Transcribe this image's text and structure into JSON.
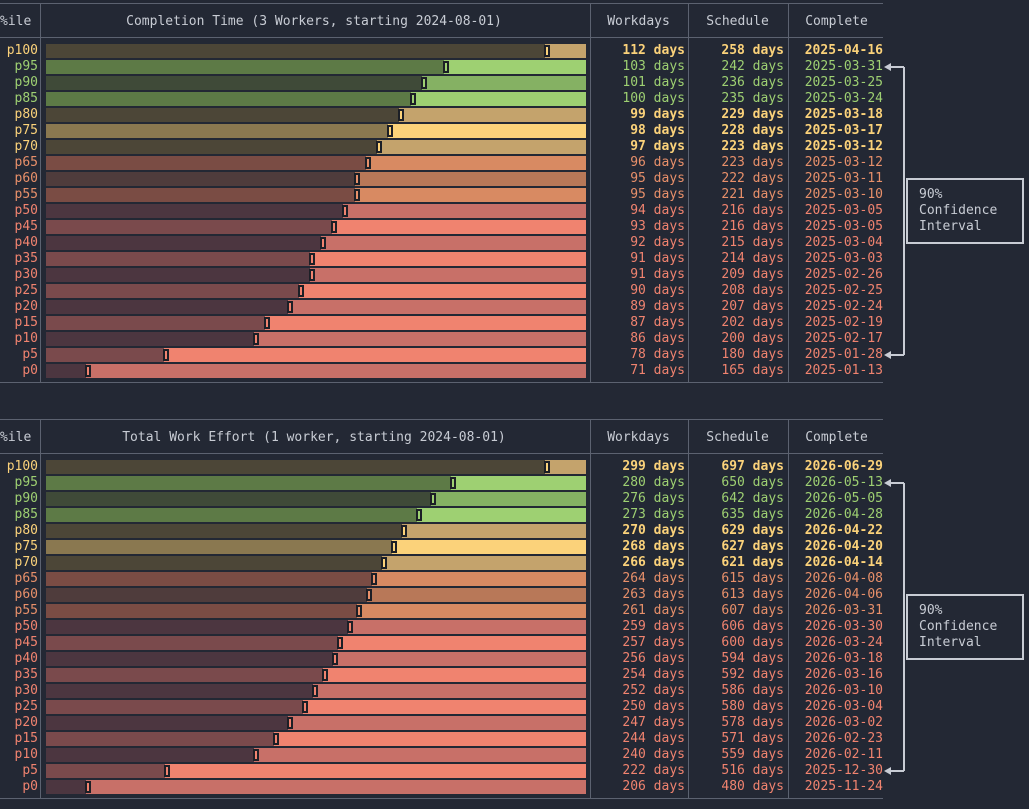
{
  "colors": {
    "background": "#232834",
    "green": "#9ed072",
    "yellow": "#fbd27a",
    "orange": "#e8906a",
    "red": "#f0836f",
    "text": "#c8ccd4"
  },
  "chart_data": [
    {
      "type": "bar",
      "title": "Completion Time (3 Workers, starting 2024-08-01)",
      "columns": [
        "%ile",
        "Workdays",
        "Schedule",
        "Complete"
      ],
      "categories": [
        "p100",
        "p95",
        "p90",
        "p85",
        "p80",
        "p75",
        "p70",
        "p65",
        "p60",
        "p55",
        "p50",
        "p45",
        "p40",
        "p35",
        "p30",
        "p25",
        "p20",
        "p15",
        "p10",
        "p5",
        "p0"
      ],
      "series": [
        {
          "name": "Workdays",
          "values": [
            112,
            103,
            101,
            100,
            99,
            98,
            97,
            96,
            95,
            95,
            94,
            93,
            92,
            91,
            91,
            90,
            89,
            87,
            86,
            78,
            71
          ]
        }
      ],
      "workdays_labels": [
        "112 days",
        "103 days",
        "101 days",
        "100 days",
        "99 days",
        "98 days",
        "97 days",
        "96 days",
        "95 days",
        "95 days",
        "94 days",
        "93 days",
        "92 days",
        "91 days",
        "91 days",
        "90 days",
        "89 days",
        "87 days",
        "86 days",
        "78 days",
        "71 days"
      ],
      "schedule_labels": [
        "258 days",
        "242 days",
        "236 days",
        "235 days",
        "229 days",
        "228 days",
        "223 days",
        "223 days",
        "222 days",
        "221 days",
        "216 days",
        "216 days",
        "215 days",
        "214 days",
        "209 days",
        "208 days",
        "207 days",
        "202 days",
        "200 days",
        "180 days",
        "165 days"
      ],
      "complete_labels": [
        "2025-04-16",
        "2025-03-31",
        "2025-03-25",
        "2025-03-24",
        "2025-03-18",
        "2025-03-17",
        "2025-03-12",
        "2025-03-12",
        "2025-03-11",
        "2025-03-10",
        "2025-03-05",
        "2025-03-05",
        "2025-03-04",
        "2025-03-03",
        "2025-02-26",
        "2025-02-25",
        "2025-02-24",
        "2025-02-19",
        "2025-02-17",
        "2025-01-28",
        "2025-01-13"
      ],
      "confidence_interval": {
        "label": "90%\nConfidence\nInterval",
        "from": "p95",
        "to": "p5"
      }
    },
    {
      "type": "bar",
      "title": "Total Work Effort (1 worker, starting 2024-08-01)",
      "columns": [
        "%ile",
        "Workdays",
        "Schedule",
        "Complete"
      ],
      "categories": [
        "p100",
        "p95",
        "p90",
        "p85",
        "p80",
        "p75",
        "p70",
        "p65",
        "p60",
        "p55",
        "p50",
        "p45",
        "p40",
        "p35",
        "p30",
        "p25",
        "p20",
        "p15",
        "p10",
        "p5",
        "p0"
      ],
      "series": [
        {
          "name": "Workdays",
          "values": [
            299,
            280,
            276,
            273,
            270,
            268,
            266,
            264,
            263,
            261,
            259,
            257,
            256,
            254,
            252,
            250,
            247,
            244,
            240,
            222,
            206
          ]
        }
      ],
      "workdays_labels": [
        "299 days",
        "280 days",
        "276 days",
        "273 days",
        "270 days",
        "268 days",
        "266 days",
        "264 days",
        "263 days",
        "261 days",
        "259 days",
        "257 days",
        "256 days",
        "254 days",
        "252 days",
        "250 days",
        "247 days",
        "244 days",
        "240 days",
        "222 days",
        "206 days"
      ],
      "schedule_labels": [
        "697 days",
        "650 days",
        "642 days",
        "635 days",
        "629 days",
        "627 days",
        "621 days",
        "615 days",
        "613 days",
        "607 days",
        "606 days",
        "600 days",
        "594 days",
        "592 days",
        "586 days",
        "580 days",
        "578 days",
        "571 days",
        "559 days",
        "516 days",
        "480 days"
      ],
      "complete_labels": [
        "2026-06-29",
        "2026-05-13",
        "2026-05-05",
        "2026-04-28",
        "2026-04-22",
        "2026-04-20",
        "2026-04-14",
        "2026-04-08",
        "2026-04-06",
        "2026-03-31",
        "2026-03-30",
        "2026-03-24",
        "2026-03-18",
        "2026-03-16",
        "2026-03-10",
        "2026-03-04",
        "2026-03-02",
        "2026-02-23",
        "2026-02-11",
        "2025-12-30",
        "2025-11-24"
      ],
      "confidence_interval": {
        "label": "90%\nConfidence\nInterval",
        "from": "p95",
        "to": "p5"
      }
    }
  ]
}
